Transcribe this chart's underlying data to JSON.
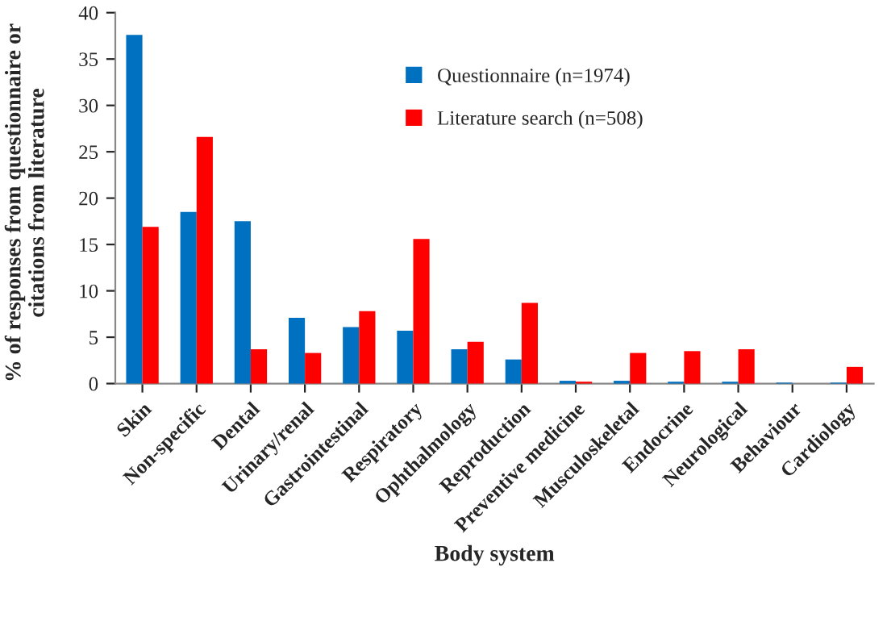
{
  "chart_data": {
    "type": "bar",
    "xlabel": "Body system",
    "ylabel": "% of responses from questionnaire or citations from literature",
    "categories": [
      "Skin",
      "Non-specific",
      "Dental",
      "Urinary/renal",
      "Gastrointestinal",
      "Respiratory",
      "Ophthalmology",
      "Reproduction",
      "Preventive medicine",
      "Musculoskeletal",
      "Endocrine",
      "Neurological",
      "Behaviour",
      "Cardiology"
    ],
    "series": [
      {
        "name": "Questionnaire (n=1974)",
        "color": "#0070c0",
        "values": [
          37.6,
          18.5,
          17.5,
          7.1,
          6.1,
          5.7,
          3.7,
          2.6,
          0.3,
          0.3,
          0.2,
          0.2,
          0.1,
          0.1
        ]
      },
      {
        "name": "Literature search (n=508)",
        "color": "#ff0000",
        "values": [
          16.9,
          26.6,
          3.7,
          3.3,
          7.8,
          15.6,
          4.5,
          8.7,
          0.2,
          3.3,
          3.5,
          3.7,
          null,
          1.8
        ]
      }
    ],
    "ylim": [
      0,
      40
    ],
    "yticks": [
      0,
      5,
      10,
      15,
      20,
      25,
      30,
      35,
      40
    ],
    "grid": false,
    "legend": "top right"
  }
}
